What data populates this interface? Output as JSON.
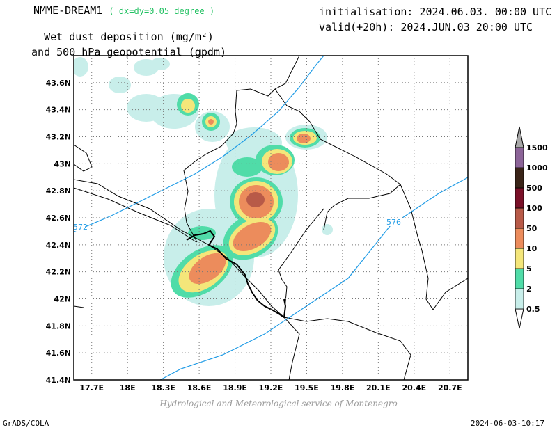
{
  "header": {
    "model": "NMME-DREAM1",
    "resolution": "( dx=dy=0.05 degree )",
    "title_line1": "Wet dust deposition (mg/m²)",
    "title_line2": "and 500 hPa geopotential (gpdm)",
    "init": "initialisation: 2024.06.03. 00:00 UTC",
    "valid": "valid(+20h): 2024.JUN.03 20:00 UTC"
  },
  "map": {
    "lat_labels": [
      "43.6N",
      "43.4N",
      "43.2N",
      "43N",
      "42.8N",
      "42.6N",
      "42.4N",
      "42.2N",
      "42N",
      "41.8N",
      "41.6N",
      "41.4N"
    ],
    "lon_labels": [
      "17.7E",
      "18E",
      "18.3E",
      "18.6E",
      "18.9E",
      "19.2E",
      "19.5E",
      "19.8E",
      "20.1E",
      "20.4E",
      "20.7E"
    ],
    "lat_range": [
      41.4,
      43.8
    ],
    "lon_range": [
      17.55,
      20.85
    ],
    "contour_labels": [
      "572",
      "576"
    ],
    "grid": true
  },
  "colorbar": {
    "levels": [
      "0.5",
      "2",
      "5",
      "10",
      "50",
      "100",
      "500",
      "1000",
      "1500"
    ],
    "colors": [
      "#c8eeea",
      "#50dca8",
      "#f4e67a",
      "#ec8c5c",
      "#b85a48",
      "#7a1028",
      "#3a2418",
      "#8c6498",
      "#a8a8a8"
    ]
  },
  "footer": {
    "credit": "Hydrological and Meteorological service of Montenegro",
    "software": "GrADS/COLA",
    "timestamp": "2024-06-03-10:17"
  }
}
